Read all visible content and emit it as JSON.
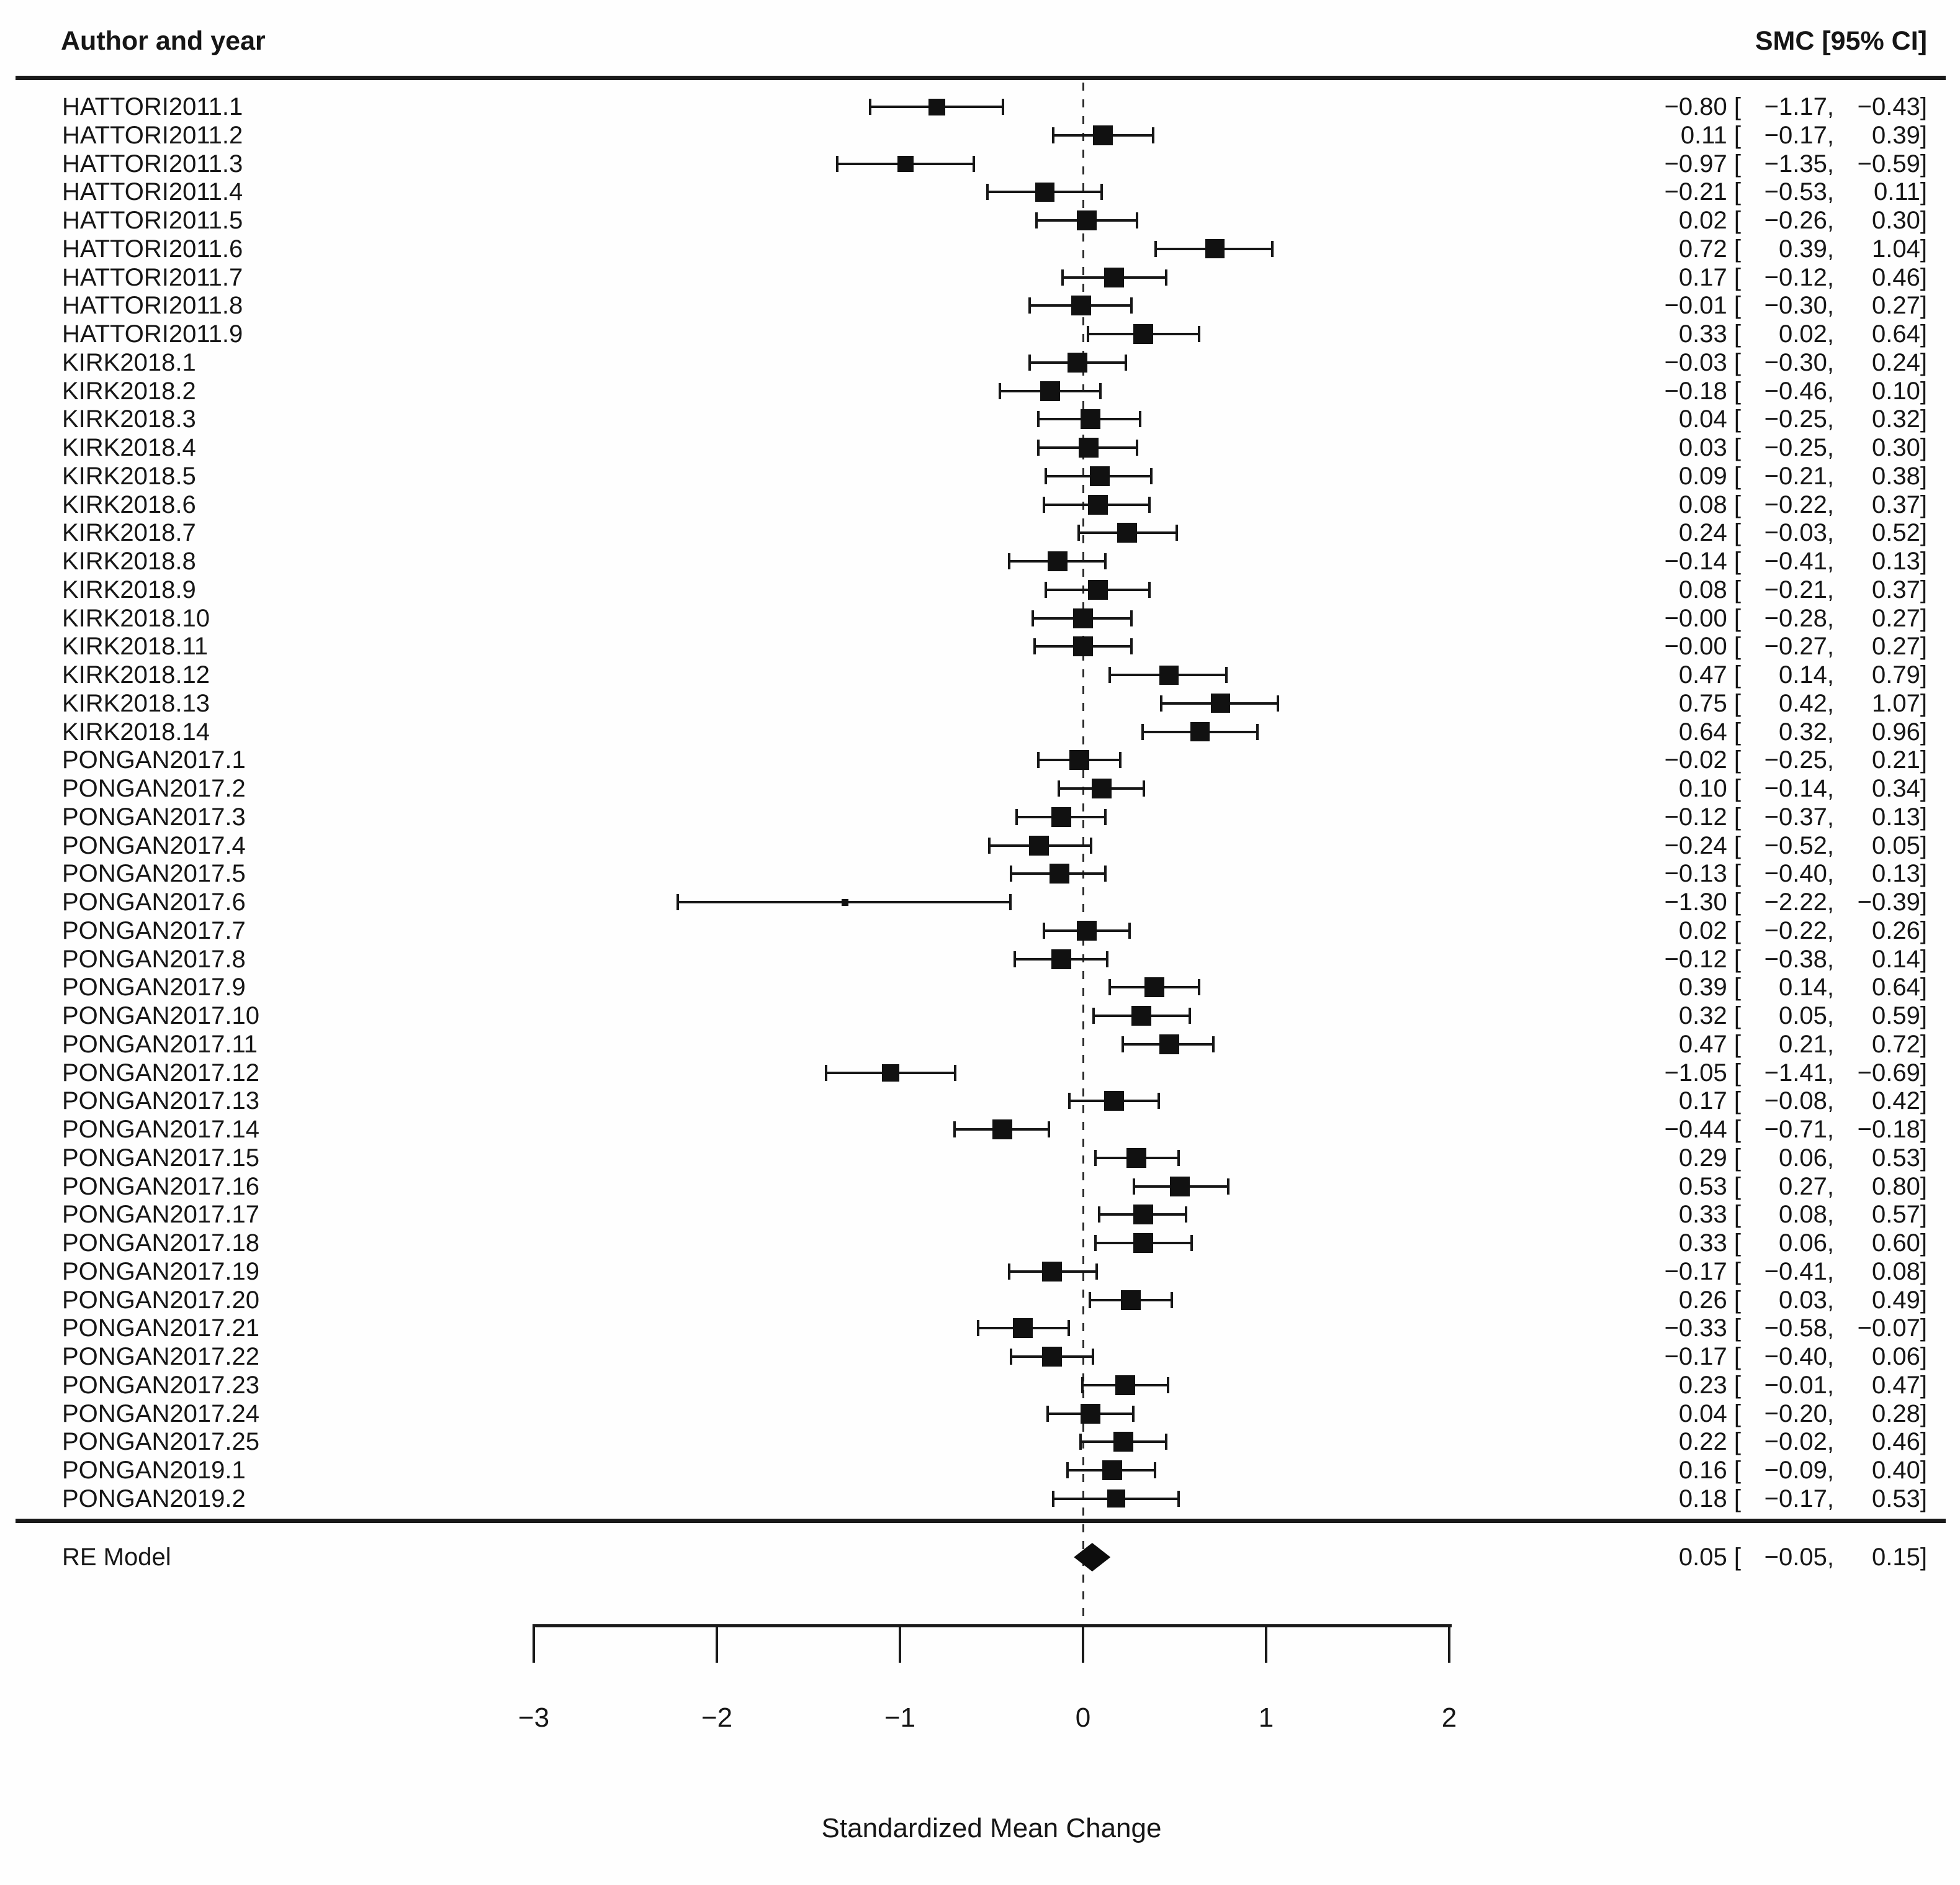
{
  "header": {
    "left": "Author and year",
    "right": "SMC [95% CI]"
  },
  "summary": {
    "label": "RE Model",
    "est": "0.05",
    "lo": "-0.05",
    "hi": "0.15"
  },
  "footer": {
    "xlabel": "Standardized Mean Change"
  },
  "colors": {
    "ink": "#161616",
    "background": "#fefefe"
  },
  "chart_data": {
    "type": "forest",
    "title": "",
    "xlabel": "Standardized Mean Change",
    "ylabel": "Author and year",
    "value_column_header": "SMC [95% CI]",
    "x_ticks": [
      -3,
      -2,
      -1,
      0,
      1,
      2
    ],
    "xlim": [
      -3,
      2
    ],
    "zero_reference_line": 0,
    "grid": false,
    "legend": false,
    "summary": {
      "label": "RE Model",
      "est": "0.05",
      "lo": "-0.05",
      "hi": "0.15"
    },
    "studies": [
      {
        "label": "HATTORI2011.1",
        "est": "-0.80",
        "lo": "-1.17",
        "hi": "-0.43"
      },
      {
        "label": "HATTORI2011.2",
        "est": "0.11",
        "lo": "-0.17",
        "hi": "0.39"
      },
      {
        "label": "HATTORI2011.3",
        "est": "-0.97",
        "lo": "-1.35",
        "hi": "-0.59"
      },
      {
        "label": "HATTORI2011.4",
        "est": "-0.21",
        "lo": "-0.53",
        "hi": "0.11"
      },
      {
        "label": "HATTORI2011.5",
        "est": "0.02",
        "lo": "-0.26",
        "hi": "0.30"
      },
      {
        "label": "HATTORI2011.6",
        "est": "0.72",
        "lo": "0.39",
        "hi": "1.04"
      },
      {
        "label": "HATTORI2011.7",
        "est": "0.17",
        "lo": "-0.12",
        "hi": "0.46"
      },
      {
        "label": "HATTORI2011.8",
        "est": "-0.01",
        "lo": "-0.30",
        "hi": "0.27"
      },
      {
        "label": "HATTORI2011.9",
        "est": "0.33",
        "lo": "0.02",
        "hi": "0.64"
      },
      {
        "label": "KIRK2018.1",
        "est": "-0.03",
        "lo": "-0.30",
        "hi": "0.24"
      },
      {
        "label": "KIRK2018.2",
        "est": "-0.18",
        "lo": "-0.46",
        "hi": "0.10"
      },
      {
        "label": "KIRK2018.3",
        "est": "0.04",
        "lo": "-0.25",
        "hi": "0.32"
      },
      {
        "label": "KIRK2018.4",
        "est": "0.03",
        "lo": "-0.25",
        "hi": "0.30"
      },
      {
        "label": "KIRK2018.5",
        "est": "0.09",
        "lo": "-0.21",
        "hi": "0.38"
      },
      {
        "label": "KIRK2018.6",
        "est": "0.08",
        "lo": "-0.22",
        "hi": "0.37"
      },
      {
        "label": "KIRK2018.7",
        "est": "0.24",
        "lo": "-0.03",
        "hi": "0.52"
      },
      {
        "label": "KIRK2018.8",
        "est": "-0.14",
        "lo": "-0.41",
        "hi": "0.13"
      },
      {
        "label": "KIRK2018.9",
        "est": "0.08",
        "lo": "-0.21",
        "hi": "0.37"
      },
      {
        "label": "KIRK2018.10",
        "est": "-0.00",
        "lo": "-0.28",
        "hi": "0.27"
      },
      {
        "label": "KIRK2018.11",
        "est": "-0.00",
        "lo": "-0.27",
        "hi": "0.27"
      },
      {
        "label": "KIRK2018.12",
        "est": "0.47",
        "lo": "0.14",
        "hi": "0.79"
      },
      {
        "label": "KIRK2018.13",
        "est": "0.75",
        "lo": "0.42",
        "hi": "1.07"
      },
      {
        "label": "KIRK2018.14",
        "est": "0.64",
        "lo": "0.32",
        "hi": "0.96"
      },
      {
        "label": "PONGAN2017.1",
        "est": "-0.02",
        "lo": "-0.25",
        "hi": "0.21"
      },
      {
        "label": "PONGAN2017.2",
        "est": "0.10",
        "lo": "-0.14",
        "hi": "0.34"
      },
      {
        "label": "PONGAN2017.3",
        "est": "-0.12",
        "lo": "-0.37",
        "hi": "0.13"
      },
      {
        "label": "PONGAN2017.4",
        "est": "-0.24",
        "lo": "-0.52",
        "hi": "0.05"
      },
      {
        "label": "PONGAN2017.5",
        "est": "-0.13",
        "lo": "-0.40",
        "hi": "0.13"
      },
      {
        "label": "PONGAN2017.6",
        "est": "-1.30",
        "lo": "-2.22",
        "hi": "-0.39"
      },
      {
        "label": "PONGAN2017.7",
        "est": "0.02",
        "lo": "-0.22",
        "hi": "0.26"
      },
      {
        "label": "PONGAN2017.8",
        "est": "-0.12",
        "lo": "-0.38",
        "hi": "0.14"
      },
      {
        "label": "PONGAN2017.9",
        "est": "0.39",
        "lo": "0.14",
        "hi": "0.64"
      },
      {
        "label": "PONGAN2017.10",
        "est": "0.32",
        "lo": "0.05",
        "hi": "0.59"
      },
      {
        "label": "PONGAN2017.11",
        "est": "0.47",
        "lo": "0.21",
        "hi": "0.72"
      },
      {
        "label": "PONGAN2017.12",
        "est": "-1.05",
        "lo": "-1.41",
        "hi": "-0.69"
      },
      {
        "label": "PONGAN2017.13",
        "est": "0.17",
        "lo": "-0.08",
        "hi": "0.42"
      },
      {
        "label": "PONGAN2017.14",
        "est": "-0.44",
        "lo": "-0.71",
        "hi": "-0.18"
      },
      {
        "label": "PONGAN2017.15",
        "est": "0.29",
        "lo": "0.06",
        "hi": "0.53"
      },
      {
        "label": "PONGAN2017.16",
        "est": "0.53",
        "lo": "0.27",
        "hi": "0.80"
      },
      {
        "label": "PONGAN2017.17",
        "est": "0.33",
        "lo": "0.08",
        "hi": "0.57"
      },
      {
        "label": "PONGAN2017.18",
        "est": "0.33",
        "lo": "0.06",
        "hi": "0.60"
      },
      {
        "label": "PONGAN2017.19",
        "est": "-0.17",
        "lo": "-0.41",
        "hi": "0.08"
      },
      {
        "label": "PONGAN2017.20",
        "est": "0.26",
        "lo": "0.03",
        "hi": "0.49"
      },
      {
        "label": "PONGAN2017.21",
        "est": "-0.33",
        "lo": "-0.58",
        "hi": "-0.07"
      },
      {
        "label": "PONGAN2017.22",
        "est": "-0.17",
        "lo": "-0.40",
        "hi": "0.06"
      },
      {
        "label": "PONGAN2017.23",
        "est": "0.23",
        "lo": "-0.01",
        "hi": "0.47"
      },
      {
        "label": "PONGAN2017.24",
        "est": "0.04",
        "lo": "-0.20",
        "hi": "0.28"
      },
      {
        "label": "PONGAN2017.25",
        "est": "0.22",
        "lo": "-0.02",
        "hi": "0.46"
      },
      {
        "label": "PONGAN2019.1",
        "est": "0.16",
        "lo": "-0.09",
        "hi": "0.40"
      },
      {
        "label": "PONGAN2019.2",
        "est": "0.18",
        "lo": "-0.17",
        "hi": "0.53"
      }
    ]
  }
}
